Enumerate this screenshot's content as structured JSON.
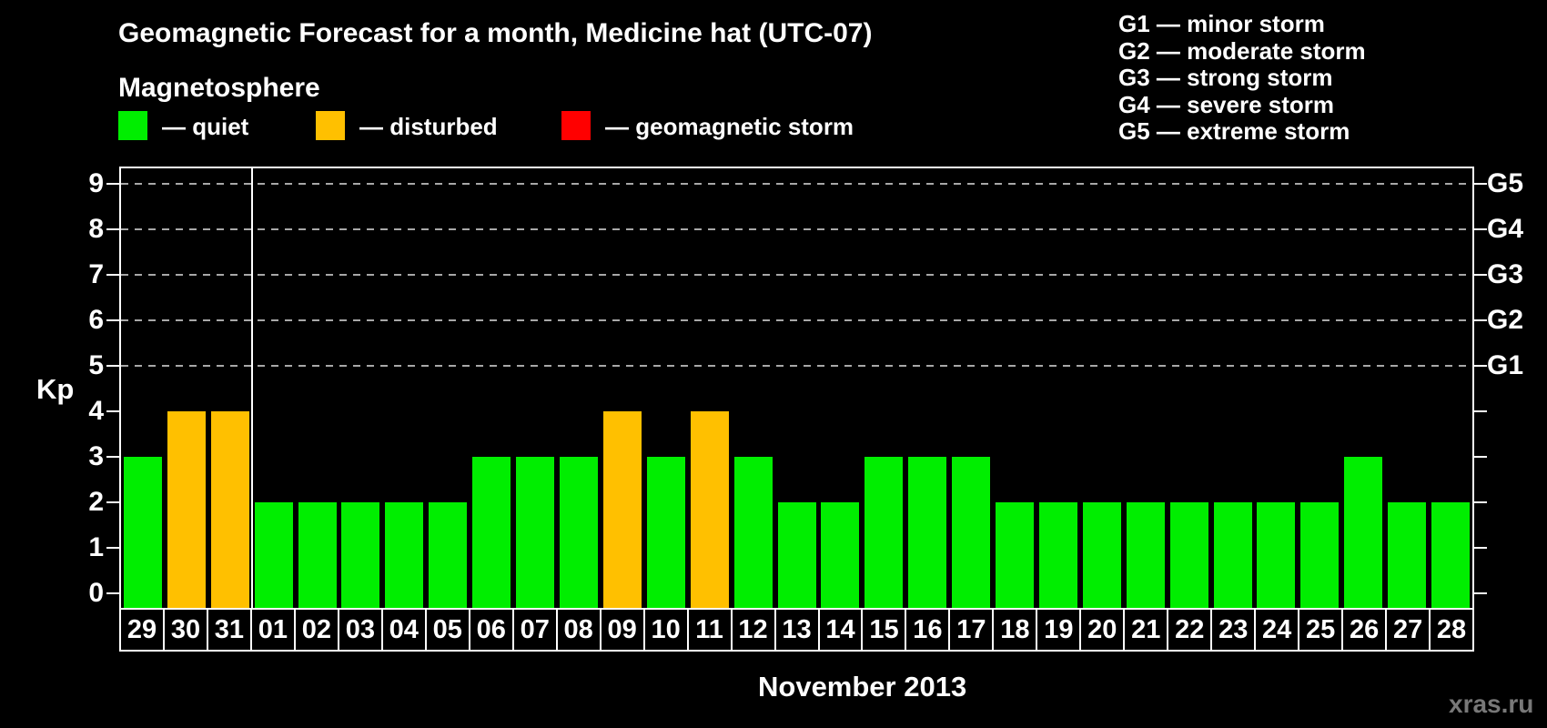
{
  "header": {
    "title": "Geomagnetic Forecast for a month, Medicine hat (UTC-07)",
    "subtitle": "Magnetosphere"
  },
  "legend": {
    "items": [
      {
        "key": "quiet",
        "label": "— quiet",
        "color": "#00ee00"
      },
      {
        "key": "disturbed",
        "label": "— disturbed",
        "color": "#ffc000"
      },
      {
        "key": "storm",
        "label": "— geomagnetic storm",
        "color": "#ff0000"
      }
    ]
  },
  "g_scale_legend": {
    "lines": [
      "G1 — minor storm",
      "G2 — moderate storm",
      "G3 — strong storm",
      "G4 — severe storm",
      "G5 — extreme storm"
    ]
  },
  "watermark": "xras.ru",
  "chart_data": {
    "type": "bar",
    "title": "Geomagnetic Forecast for a month, Medicine hat (UTC-07)",
    "xlabel": "November 2013",
    "ylabel": "Kp",
    "ylim": [
      0,
      9.4
    ],
    "y_ticks": [
      0,
      1,
      2,
      3,
      4,
      5,
      6,
      7,
      8,
      9
    ],
    "gridlines_at": [
      5,
      6,
      7,
      8,
      9
    ],
    "grid": "dashed-horizontal",
    "legend_position": "top-left",
    "right_axis": [
      {
        "kp": 5,
        "label": "G1"
      },
      {
        "kp": 6,
        "label": "G2"
      },
      {
        "kp": 7,
        "label": "G3"
      },
      {
        "kp": 8,
        "label": "G4"
      },
      {
        "kp": 9,
        "label": "G5"
      }
    ],
    "categories": [
      "29",
      "30",
      "31",
      "01",
      "02",
      "03",
      "04",
      "05",
      "06",
      "07",
      "08",
      "09",
      "10",
      "11",
      "12",
      "13",
      "14",
      "15",
      "16",
      "17",
      "18",
      "19",
      "20",
      "21",
      "22",
      "23",
      "24",
      "25",
      "26",
      "27",
      "28"
    ],
    "values": [
      3,
      4,
      4,
      2,
      2,
      2,
      2,
      2,
      3,
      3,
      3,
      4,
      3,
      4,
      3,
      2,
      2,
      3,
      3,
      3,
      2,
      2,
      2,
      2,
      2,
      2,
      2,
      2,
      3,
      2,
      2
    ],
    "statuses": [
      "quiet",
      "disturbed",
      "disturbed",
      "quiet",
      "quiet",
      "quiet",
      "quiet",
      "quiet",
      "quiet",
      "quiet",
      "quiet",
      "disturbed",
      "quiet",
      "disturbed",
      "quiet",
      "quiet",
      "quiet",
      "quiet",
      "quiet",
      "quiet",
      "quiet",
      "quiet",
      "quiet",
      "quiet",
      "quiet",
      "quiet",
      "quiet",
      "quiet",
      "quiet",
      "quiet",
      "quiet"
    ],
    "month_separator_after_index": 2,
    "colors": {
      "quiet": "#00ee00",
      "disturbed": "#ffc000",
      "storm": "#ff0000",
      "grid": "#a8a8a8",
      "axis": "#ffffff"
    }
  }
}
